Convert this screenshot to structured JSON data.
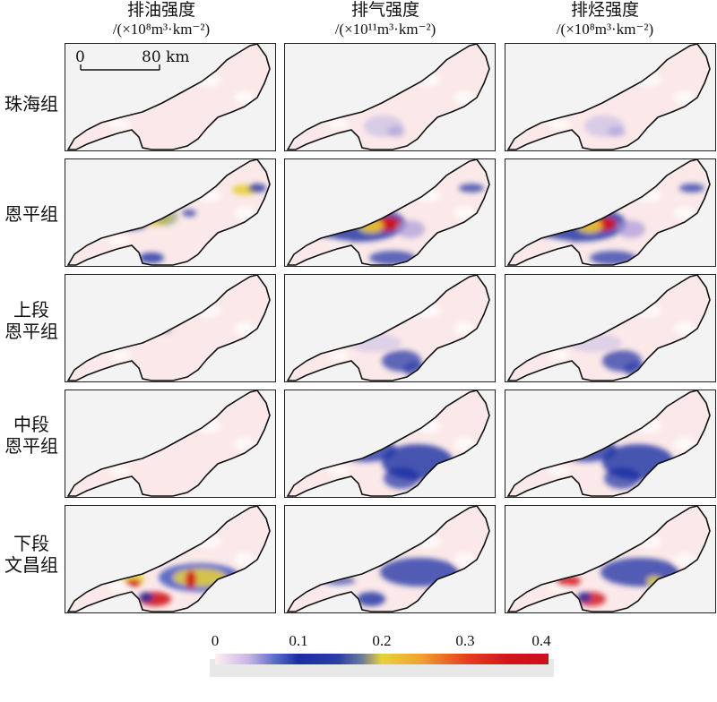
{
  "columns": [
    {
      "name": "排油强度",
      "unit": "/(×10⁸m³·km⁻²)"
    },
    {
      "name": "排气强度",
      "unit": "/(×10¹¹m³·km⁻²)"
    },
    {
      "name": "排烃强度",
      "unit": "/(×10⁸m³·km⁻²)"
    }
  ],
  "rows": [
    {
      "label_lines": [
        "珠海组"
      ]
    },
    {
      "label_lines": [
        "恩平组"
      ]
    },
    {
      "label_lines": [
        "上段",
        "恩平组"
      ]
    },
    {
      "label_lines": [
        "中段",
        "恩平组"
      ]
    },
    {
      "label_lines": [
        "下段",
        "文昌组"
      ]
    }
  ],
  "scale_bar": {
    "start_label": "0",
    "end_label": "80 km"
  },
  "colorbar": {
    "ticks": [
      "0",
      "0.1",
      "0.2",
      "0.3",
      "0.4"
    ],
    "colors": {
      "low": "#fbf0f2",
      "mid_low": "#1a2ea3",
      "mid": "#e8d23a",
      "high": "#cc0f1d"
    }
  }
}
